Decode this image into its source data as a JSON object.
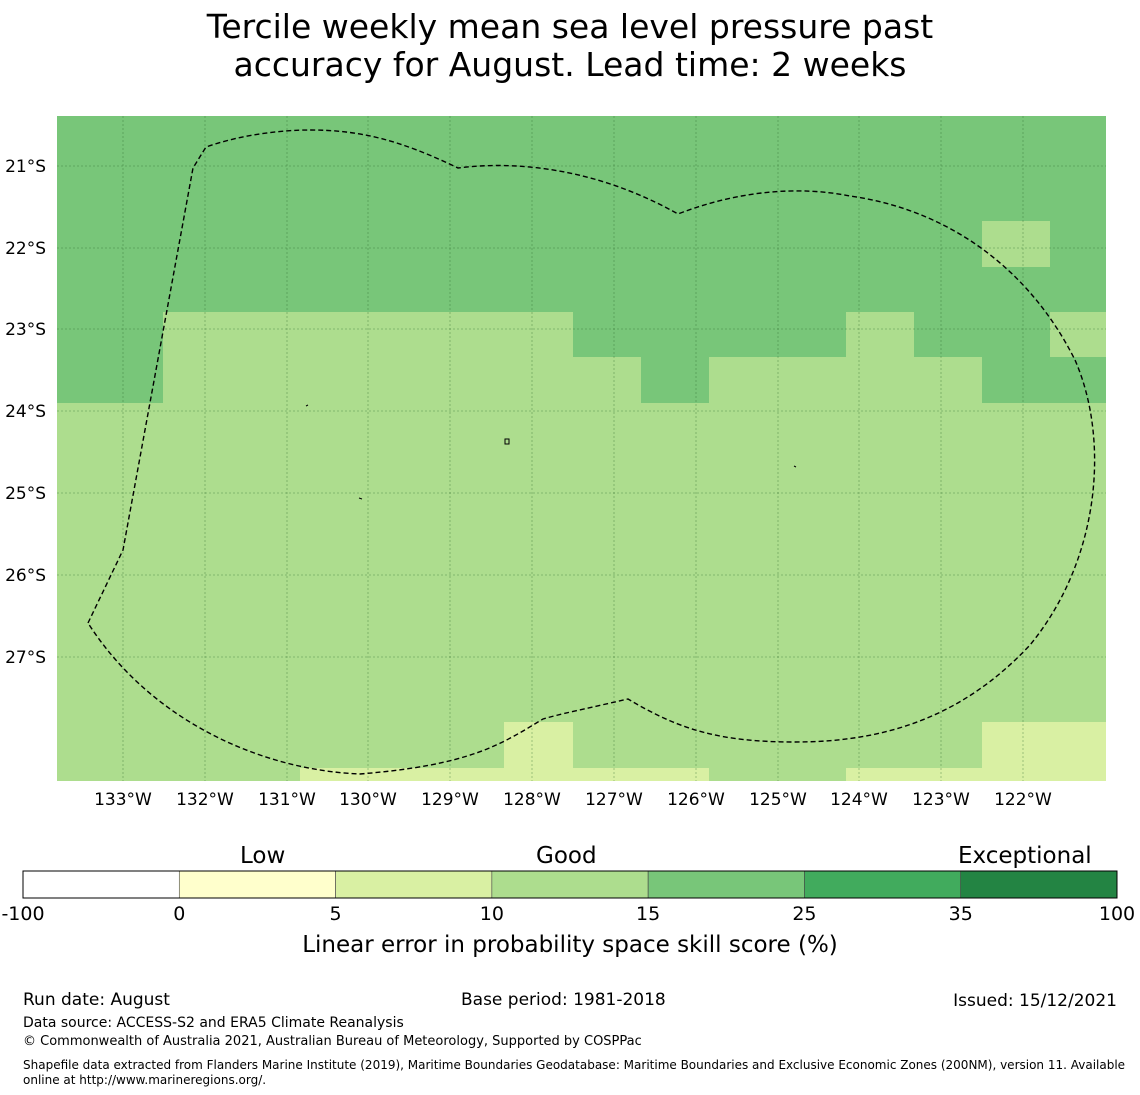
{
  "title": {
    "line1": "Tercile weekly mean sea level pressure past",
    "line2": "accuracy for August. Lead time: 2 weeks"
  },
  "map": {
    "lat_labels": [
      "21°S",
      "22°S",
      "23°S",
      "24°S",
      "25°S",
      "26°S",
      "27°S"
    ],
    "lon_labels": [
      "133°W",
      "132°W",
      "131°W",
      "130°W",
      "129°W",
      "128°W",
      "127°W",
      "126°W",
      "125°W",
      "124°W",
      "123°W",
      "122°W"
    ],
    "colors": {
      "class_25_35": "#78c679",
      "class_15_25": "#addd8e",
      "class_10_15": "#d9f0a3"
    },
    "boundary_style": "dashed"
  },
  "colorbar": {
    "category_labels": [
      "Low",
      "Good",
      "Exceptional"
    ],
    "ticks": [
      "-100",
      "0",
      "5",
      "10",
      "15",
      "25",
      "35",
      "100"
    ],
    "colors": [
      "#ffffff",
      "#ffffcc",
      "#d9f0a3",
      "#addd8e",
      "#78c679",
      "#41ab5d",
      "#238443"
    ],
    "label": "Linear error in probability space skill score (%)"
  },
  "footer": {
    "run_date": "Run date: August",
    "base_period": "Base period: 1981-2018",
    "issued": "Issued: 15/12/2021",
    "data_source": "Data source: ACCESS-S2 and ERA5 Climate Reanalysis",
    "copyright": "© Commonwealth of Australia 2021, Australian Bureau of Meteorology, Supported by COSPPac",
    "shapefile": "Shapefile data extracted from Flanders Marine Institute (2019), Maritime Boundaries Geodatabase: Maritime Boundaries and Exclusive Economic Zones (200NM), version 11. Available online at http://www.marineregions.org/."
  }
}
